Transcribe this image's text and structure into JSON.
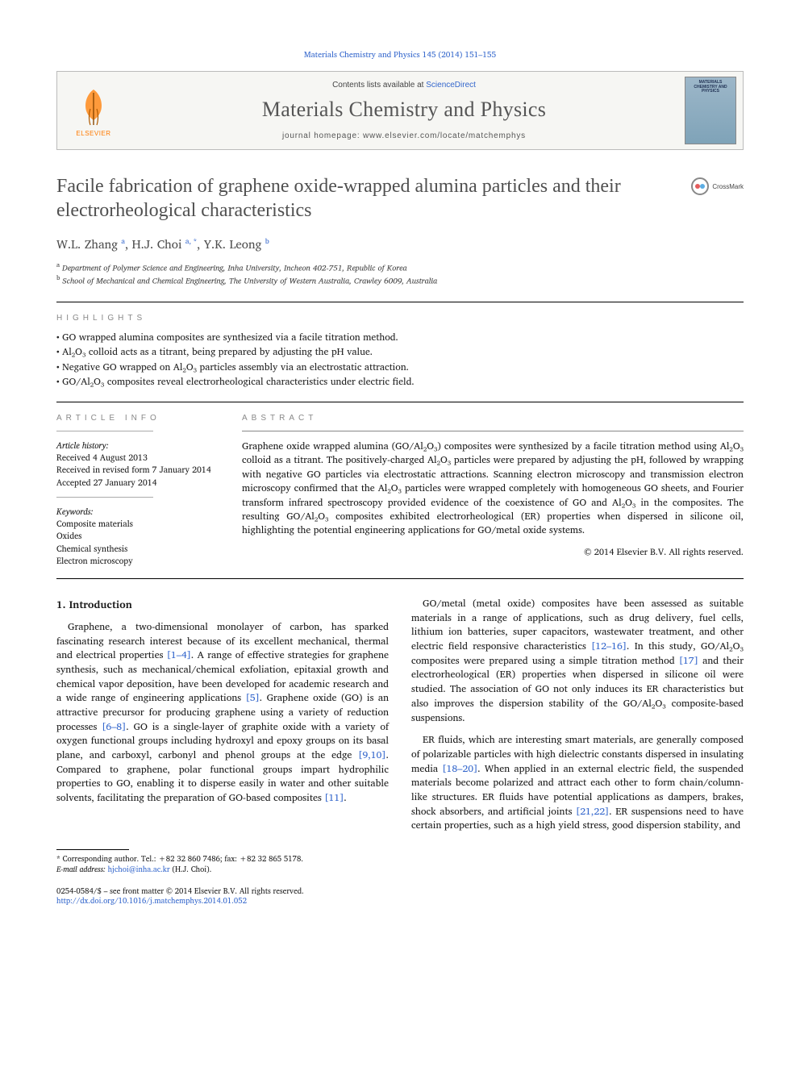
{
  "citation": "Materials Chemistry and Physics 145 (2014) 151–155",
  "banner": {
    "elsevier": "ELSEVIER",
    "contents_prefix": "Contents lists available at ",
    "contents_link": "ScienceDirect",
    "journal": "Materials Chemistry and Physics",
    "homepage_label": "journal homepage: ",
    "homepage_url": "www.elsevier.com/locate/matchemphys",
    "cover_title": "MATERIALS CHEMISTRY AND PHYSICS"
  },
  "crossmark": "CrossMark",
  "title": "Facile fabrication of graphene oxide-wrapped alumina particles and their electrorheological characteristics",
  "authors_html": "W.L. Zhang <sup>a</sup>, H.J. Choi <sup>a, *</sup>, Y.K. Leong <sup>b</sup>",
  "affiliations": [
    {
      "sup": "a",
      "text": "Department of Polymer Science and Engineering, Inha University, Incheon 402-751, Republic of Korea"
    },
    {
      "sup": "b",
      "text": "School of Mechanical and Chemical Engineering, The University of Western Australia, Crawley 6009, Australia"
    }
  ],
  "labels": {
    "highlights": "HIGHLIGHTS",
    "article_info": "ARTICLE INFO",
    "abstract": "ABSTRACT"
  },
  "highlights": [
    "GO wrapped alumina composites are synthesized via a facile titration method.",
    "Al₂O₃ colloid acts as a titrant, being prepared by adjusting the pH value.",
    "Negative GO wrapped on Al₂O₃ particles assembly via an electrostatic attraction.",
    "GO/Al₂O₃ composites reveal electrorheological characteristics under electric field."
  ],
  "article_info": {
    "history_label": "Article history:",
    "received": "Received 4 August 2013",
    "revised": "Received in revised form 7 January 2014",
    "accepted": "Accepted 27 January 2014",
    "keywords_label": "Keywords:",
    "keywords": [
      "Composite materials",
      "Oxides",
      "Chemical synthesis",
      "Electron microscopy"
    ]
  },
  "abstract": "Graphene oxide wrapped alumina (GO/Al₂O₃) composites were synthesized by a facile titration method using Al₂O₃ colloid as a titrant. The positively-charged Al₂O₃ particles were prepared by adjusting the pH, followed by wrapping with negative GO particles via electrostatic attractions. Scanning electron microscopy and transmission electron microscopy confirmed that the Al₂O₃ particles were wrapped completely with homogeneous GO sheets, and Fourier transform infrared spectroscopy provided evidence of the coexistence of GO and Al₂O₃ in the composites. The resulting GO/Al₂O₃ composites exhibited electrorheological (ER) properties when dispersed in silicone oil, highlighting the potential engineering applications for GO/metal oxide systems.",
  "copyright": "© 2014 Elsevier B.V. All rights reserved.",
  "body": {
    "section_number": "1.",
    "section_title": "Introduction",
    "p1_a": "Graphene, a two-dimensional monolayer of carbon, has sparked fascinating research interest because of its excellent mechanical, thermal and electrical properties ",
    "p1_ref1": "[1–4]",
    "p1_b": ". A range of effective strategies for graphene synthesis, such as mechanical/chemical exfoliation, epitaxial growth and chemical vapor deposition, have been developed for academic research and a wide range of engineering applications ",
    "p1_ref2": "[5]",
    "p1_c": ". Graphene oxide (GO) is an attractive precursor for producing graphene using a variety of reduction processes ",
    "p1_ref3": "[6–8]",
    "p1_d": ". GO is a single-layer of graphite oxide with a variety of oxygen functional groups including hydroxyl and epoxy groups on its basal plane, and carboxyl, carbonyl and phenol groups at the edge ",
    "p1_ref4": "[9,10]",
    "p1_e": ". Compared to graphene, polar functional groups impart hydrophilic properties to GO, enabling it to disperse easily in water and other suitable solvents, facilitating the preparation of GO-based composites ",
    "p1_ref5": "[11]",
    "p1_f": ".",
    "p2_a": "GO/metal (metal oxide) composites have been assessed as suitable materials in a range of applications, such as drug delivery, fuel cells, lithium ion batteries, super capacitors, wastewater treatment, and other electric field responsive characteristics ",
    "p2_ref1": "[12–16]",
    "p2_b": ". In this study, GO/Al₂O₃ composites were prepared using a simple titration method ",
    "p2_ref2": "[17]",
    "p2_c": " and their electrorheological (ER) properties when dispersed in silicone oil were studied. The association of GO not only induces its ER characteristics but also improves the dispersion stability of the GO/Al₂O₃ composite-based suspensions.",
    "p3_a": "ER fluids, which are interesting smart materials, are generally composed of polarizable particles with high dielectric constants dispersed in insulating media ",
    "p3_ref1": "[18–20]",
    "p3_b": ". When applied in an external electric field, the suspended materials become polarized and attract each other to form chain/column-like structures. ER fluids have potential applications as dampers, brakes, shock absorbers, and artificial joints ",
    "p3_ref2": "[21,22]",
    "p3_c": ". ER suspensions need to have certain properties, such as a high yield stress, good dispersion stability, and"
  },
  "footnotes": {
    "corr": "* Corresponding author. Tel.: +82 32 860 7486; fax: +82 32 865 5178.",
    "email_label": "E-mail address:",
    "email": "hjchoi@inha.ac.kr",
    "email_who": "(H.J. Choi)."
  },
  "footer": {
    "left1": "0254-0584/$ – see front matter © 2014 Elsevier B.V. All rights reserved.",
    "doi": "http://dx.doi.org/10.1016/j.matchemphys.2014.01.052"
  },
  "colors": {
    "link": "#3366cc",
    "elsevier_orange": "#ff7a00",
    "heading_gray": "#505050",
    "label_gray": "#888888"
  }
}
